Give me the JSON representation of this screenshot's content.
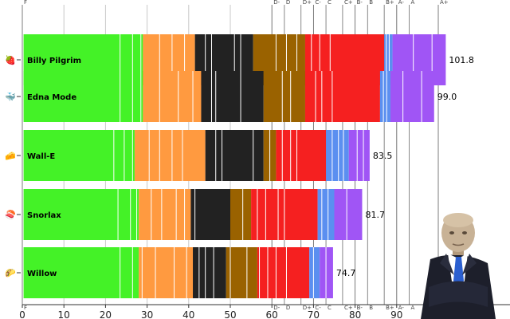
{
  "chart_data": {
    "type": "bar",
    "orientation": "horizontal",
    "stacked": true,
    "title": "",
    "xlabel": "",
    "ylabel": "",
    "xlim": [
      0,
      110
    ],
    "x_ticks": [
      "0",
      "10",
      "20",
      "30",
      "40",
      "50",
      "60",
      "70",
      "80",
      "90",
      "100"
    ],
    "grade_markers": [
      {
        "label": "F",
        "value": 0
      },
      {
        "label": "D-",
        "value": 60
      },
      {
        "label": "D",
        "value": 63
      },
      {
        "label": "D+",
        "value": 67
      },
      {
        "label": "C-",
        "value": 70
      },
      {
        "label": "C",
        "value": 73
      },
      {
        "label": "C+",
        "value": 77
      },
      {
        "label": "B-",
        "value": 80
      },
      {
        "label": "B",
        "value": 83
      },
      {
        "label": "B+",
        "value": 87
      },
      {
        "label": "A-",
        "value": 90
      },
      {
        "label": "A",
        "value": 93
      },
      {
        "label": "A+",
        "value": 100
      }
    ],
    "segment_colors": [
      "#44f227",
      "#ff9a40",
      "#222222",
      "#9a6200",
      "#f52020",
      "#5b8ff0",
      "#a055f5"
    ],
    "categories": [
      "Billy Pilgrim",
      "Edna Mode",
      "Wall-E",
      "Snorlax",
      "Willow"
    ],
    "icons": [
      "strawberry-icon",
      "whale-icon",
      "cheese-icon",
      "sushi-icon",
      "taco-icon"
    ],
    "icon_glyphs": [
      "🍓",
      "🐳",
      "🧀",
      "🍣",
      "🌮"
    ],
    "totals": [
      "101.8",
      "99.0",
      "83.5",
      "81.7",
      "74.7"
    ],
    "total_values": [
      101.8,
      99.0,
      83.5,
      81.7,
      74.7
    ],
    "bars": [
      {
        "segments": [
          [
            0.3,
            29.0
          ],
          [
            29.0,
            41.5
          ],
          [
            41.5,
            55.5
          ],
          [
            55.5,
            68.0
          ],
          [
            68.0,
            87.0
          ],
          [
            87.0,
            89.0
          ],
          [
            89.0,
            101.8
          ]
        ],
        "dividers": [
          23.5,
          26.5,
          28.5,
          33.0,
          36.0,
          39.0,
          44.0,
          45.5,
          51.0,
          52.5,
          61.0,
          63.5,
          66.0,
          69.5,
          71.5,
          74.0,
          87.5,
          88.2,
          94.0,
          98.5
        ]
      },
      {
        "segments": [
          [
            0.3,
            29.0
          ],
          [
            29.0,
            43.0
          ],
          [
            43.0,
            58.0
          ],
          [
            58.0,
            68.0
          ],
          [
            68.0,
            86.0
          ],
          [
            86.0,
            88.5
          ],
          [
            88.5,
            99.0
          ]
        ],
        "dividers": [
          23.5,
          26.5,
          28.5,
          33.0,
          37.5,
          41.0,
          45.5,
          46.5,
          52.5,
          62.5,
          64.5,
          70.5,
          72.0,
          74.5,
          86.8,
          87.6,
          91.5,
          96.0
        ]
      },
      {
        "segments": [
          [
            0.3,
            27.0
          ],
          [
            27.0,
            44.0
          ],
          [
            44.0,
            58.0
          ],
          [
            58.0,
            61.0
          ],
          [
            61.0,
            73.0
          ],
          [
            73.0,
            78.5
          ],
          [
            78.5,
            83.5
          ]
        ],
        "dividers": [
          22.0,
          24.5,
          26.5,
          30.5,
          33.0,
          36.0,
          38.5,
          46.5,
          48.0,
          55.5,
          59.5,
          62.5,
          64.5,
          66.0,
          74.5,
          76.0,
          77.2,
          80.5,
          82.0
        ]
      },
      {
        "segments": [
          [
            0.3,
            28.0
          ],
          [
            28.0,
            40.5
          ],
          [
            40.5,
            50.0
          ],
          [
            50.0,
            55.0
          ],
          [
            55.0,
            71.0
          ],
          [
            71.0,
            75.0
          ],
          [
            75.0,
            81.7
          ]
        ],
        "dividers": [
          23.0,
          26.0,
          27.5,
          31.0,
          33.5,
          37.0,
          39.0,
          41.5,
          53.0,
          56.5,
          58.5,
          61.5,
          63.0,
          72.0,
          73.5,
          78.0
        ]
      },
      {
        "segments": [
          [
            0.3,
            28.0
          ],
          [
            28.0,
            41.0
          ],
          [
            41.0,
            49.0
          ],
          [
            49.0,
            56.5
          ],
          [
            56.5,
            69.0
          ],
          [
            69.0,
            71.5
          ],
          [
            71.5,
            74.7
          ]
        ],
        "dividers": [
          23.5,
          26.5,
          28.8,
          32.0,
          36.5,
          39.5,
          42.5,
          44.0,
          46.0,
          50.0,
          54.0,
          57.0,
          59.0,
          61.0,
          63.5,
          70.0,
          73.0
        ]
      }
    ]
  }
}
